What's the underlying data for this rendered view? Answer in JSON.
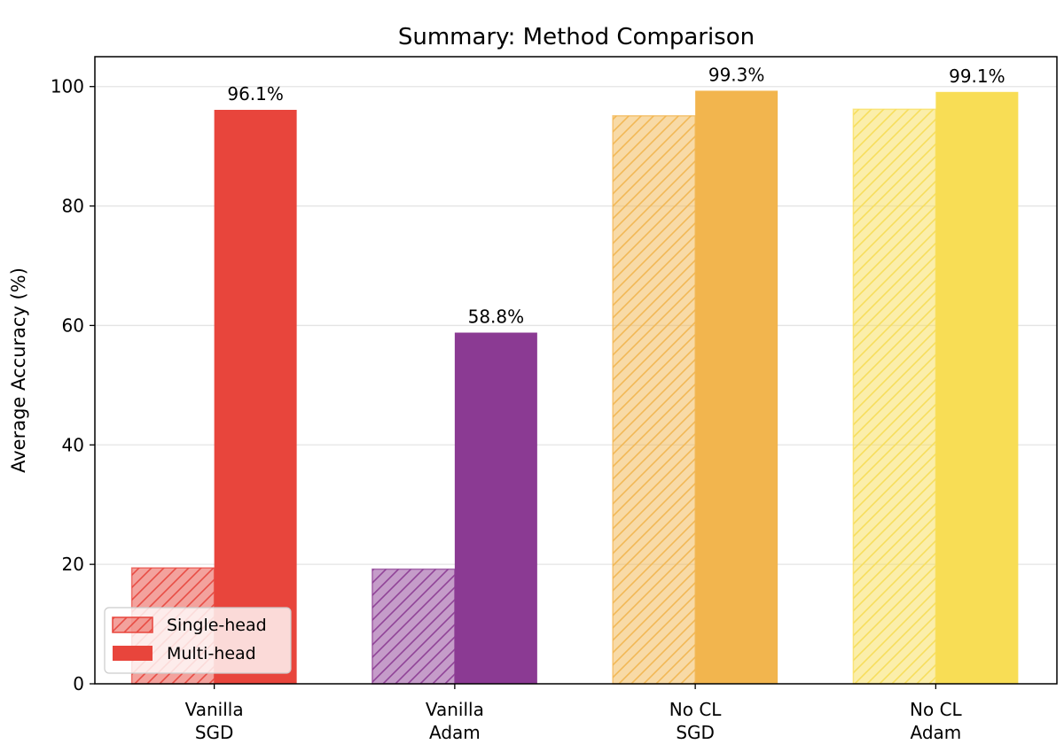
{
  "chart_data": {
    "type": "bar",
    "title": "Summary: Method Comparison",
    "xlabel": "",
    "ylabel": "Average Accuracy (%)",
    "ylim": [
      0,
      105
    ],
    "yticks": [
      0,
      20,
      40,
      60,
      80,
      100
    ],
    "grid": "y",
    "legend_position": "bottom-left",
    "categories": [
      [
        "Vanilla",
        "SGD"
      ],
      [
        "Vanilla",
        "Adam"
      ],
      [
        "No CL",
        "SGD"
      ],
      [
        "No CL",
        "Adam"
      ]
    ],
    "colors": [
      "#e8453c",
      "#8b3a93",
      "#f2b54e",
      "#f8dd55"
    ],
    "series": [
      {
        "name": "Single-head",
        "style": "hatched-translucent",
        "values": [
          19.4,
          19.2,
          95.1,
          96.2
        ]
      },
      {
        "name": "Multi-head",
        "style": "solid",
        "values": [
          96.1,
          58.8,
          99.3,
          99.1
        ]
      }
    ],
    "data_labels": [
      "",
      "96.1%",
      "",
      "58.8%",
      "",
      "99.3%",
      "",
      "99.1%"
    ]
  }
}
